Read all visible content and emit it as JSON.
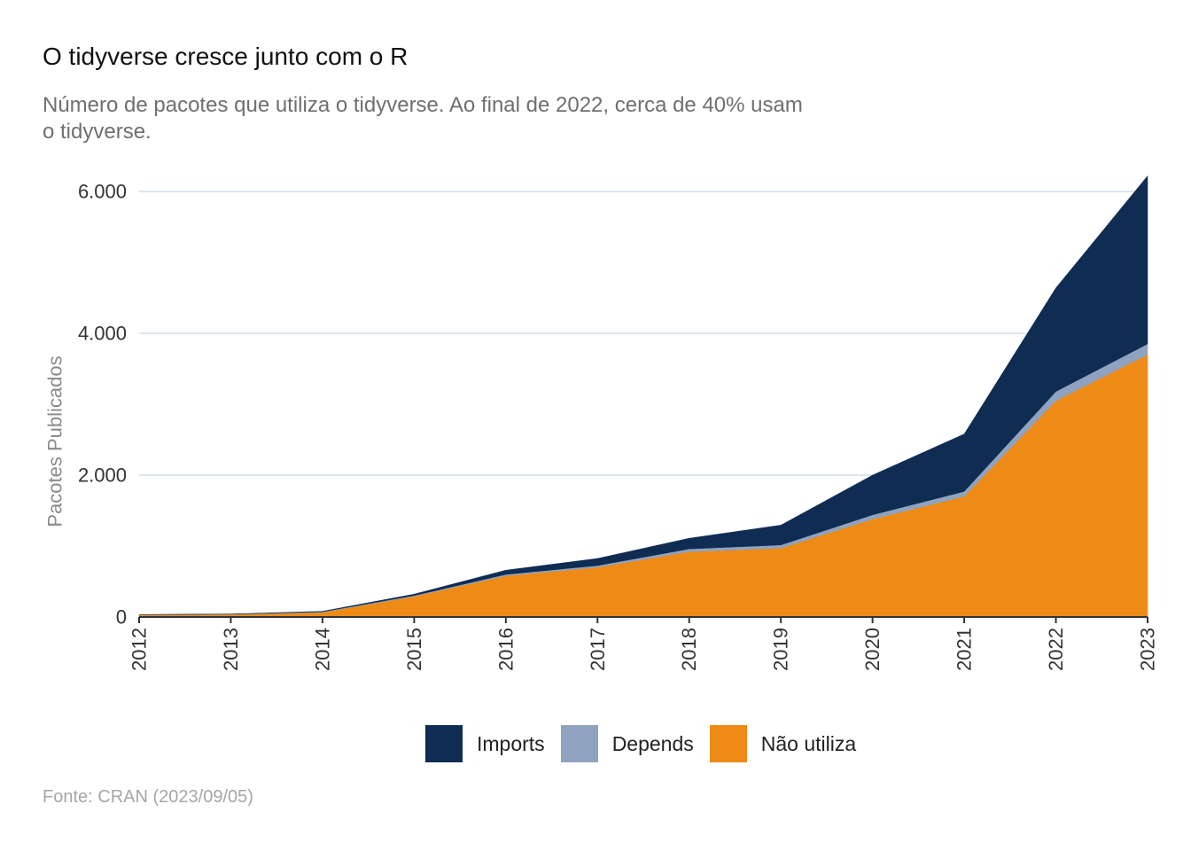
{
  "title": "O tidyverse cresce junto com o R",
  "subtitle": "Número de pacotes que utiliza o tidyverse. Ao final de 2022, cerca de 40% usam o tidyverse.",
  "caption": "Fonte: CRAN (2023/09/05)",
  "chart_data": {
    "type": "area",
    "stacked": true,
    "title": "O tidyverse cresce junto com o R",
    "subtitle": "Número de pacotes que utiliza o tidyverse. Ao final de 2022, cerca de 40% usam o tidyverse.",
    "xlabel": "",
    "ylabel": "Pacotes Publicados",
    "x": [
      "2012",
      "2013",
      "2014",
      "2015",
      "2016",
      "2017",
      "2018",
      "2019",
      "2020",
      "2021",
      "2022",
      "2023"
    ],
    "xlim": [
      2012,
      2023
    ],
    "ylim": [
      0,
      6200
    ],
    "yticks": [
      0,
      2000,
      4000,
      6000
    ],
    "ytick_labels": [
      "0",
      "2.000",
      "4.000",
      "6.000"
    ],
    "grid": "horizontal",
    "legend_position": "bottom",
    "series": [
      {
        "name": "Não utiliza",
        "color": "#ee8a16",
        "values": [
          30,
          35,
          65,
          290,
          580,
          700,
          920,
          970,
          1380,
          1700,
          3050,
          3700
        ]
      },
      {
        "name": "Depends",
        "color": "#8fa3c0",
        "values": [
          3,
          4,
          8,
          12,
          20,
          25,
          40,
          45,
          60,
          70,
          130,
          150
        ]
      },
      {
        "name": "Imports",
        "color": "#0f2c52",
        "values": [
          2,
          3,
          7,
          20,
          60,
          100,
          150,
          280,
          560,
          810,
          1460,
          2370
        ]
      }
    ],
    "legend_order": [
      "Imports",
      "Depends",
      "Não utiliza"
    ]
  }
}
